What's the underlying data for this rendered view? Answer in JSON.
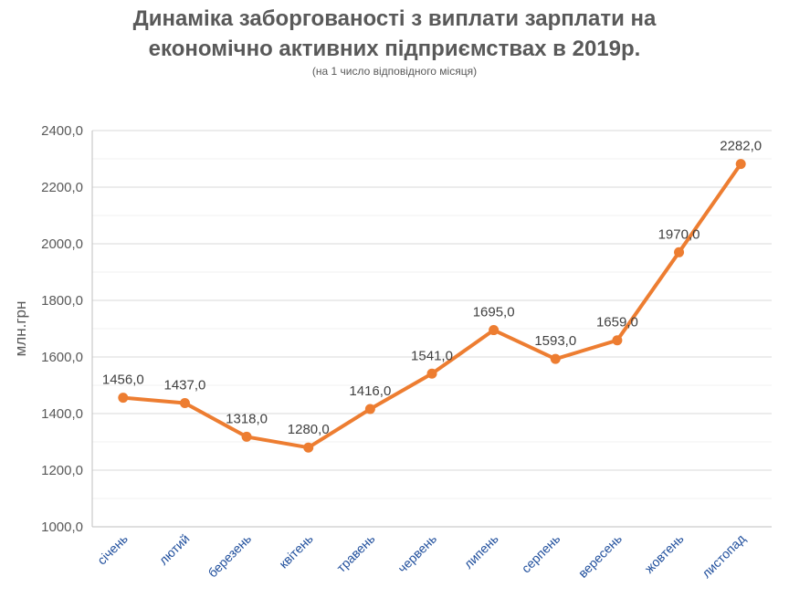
{
  "chart_data": {
    "type": "line",
    "title_line1": "Динаміка заборгованості з виплати зарплати на",
    "title_line2": "економічно активних підприємствах в 2019р.",
    "subtitle": "(на 1 число відповідного місяця)",
    "ylabel": "млн.грн",
    "ylim": [
      1000,
      2400
    ],
    "yticks": [
      "1000,0",
      "1200,0",
      "1400,0",
      "1600,0",
      "1800,0",
      "2000,0",
      "2200,0",
      "2400,0"
    ],
    "categories": [
      "січень",
      "лютий",
      "березень",
      "квітень",
      "травень",
      "червень",
      "липень",
      "серпень",
      "вересень",
      "жовтень",
      "листопад"
    ],
    "values": [
      1456,
      1437,
      1318,
      1280,
      1416,
      1541,
      1695,
      1593,
      1659,
      1970,
      2282
    ],
    "data_labels": [
      "1456,0",
      "1437,0",
      "1318,0",
      "1280,0",
      "1416,0",
      "1541,0",
      "1695,0",
      "1593,0",
      "1659,0",
      "1970,0",
      "2282,0"
    ],
    "series_color": "#ed7d31",
    "grid": true
  }
}
